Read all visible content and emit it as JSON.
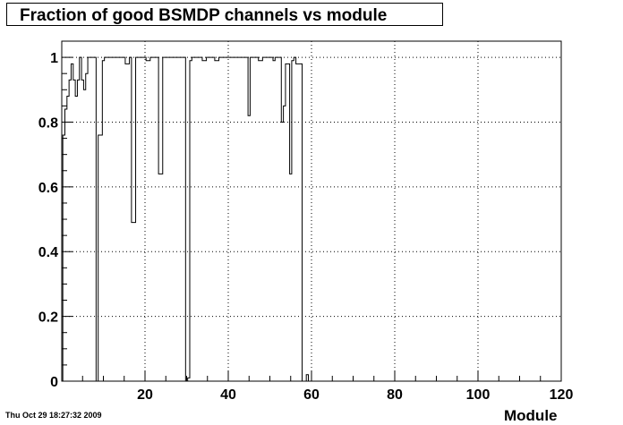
{
  "chart_data": {
    "type": "histogram-step",
    "title": "Fraction of good BSMDP channels vs module",
    "xlabel": "Module",
    "ylabel": "",
    "xlim": [
      0,
      120
    ],
    "ylim": [
      0,
      1.05
    ],
    "bin_width": 0.5,
    "x_ticks": [
      20,
      40,
      60,
      80,
      100,
      120
    ],
    "y_ticks": [
      0,
      0.2,
      0.4,
      0.6,
      0.8,
      1
    ],
    "y_tick_labels": [
      "0",
      "0.2",
      "0.4",
      "0.6",
      "0.8",
      "1"
    ],
    "x_tick_labels": [
      "20",
      "40",
      "60",
      "80",
      "100",
      "120"
    ],
    "grid": true,
    "points": [
      [
        0.5,
        0.76
      ],
      [
        1.0,
        0.84
      ],
      [
        1.5,
        0.88
      ],
      [
        2.0,
        0.93
      ],
      [
        2.5,
        0.98
      ],
      [
        3.0,
        0.93
      ],
      [
        3.5,
        0.88
      ],
      [
        4.0,
        0.93
      ],
      [
        4.5,
        1.0
      ],
      [
        5.0,
        0.93
      ],
      [
        5.5,
        0.9
      ],
      [
        6.0,
        0.95
      ],
      [
        6.5,
        1.0
      ],
      [
        7.0,
        1.0
      ],
      [
        7.5,
        1.0
      ],
      [
        8.0,
        1.0
      ],
      [
        8.5,
        0.0
      ],
      [
        9.0,
        0.76
      ],
      [
        9.5,
        0.76
      ],
      [
        10.0,
        0.99
      ],
      [
        10.5,
        1.0
      ],
      [
        11.0,
        1.0
      ],
      [
        11.5,
        1.0
      ],
      [
        12.0,
        1.0
      ],
      [
        12.5,
        1.0
      ],
      [
        13.0,
        1.0
      ],
      [
        13.5,
        1.0
      ],
      [
        14.0,
        1.0
      ],
      [
        14.5,
        1.0
      ],
      [
        15.0,
        1.0
      ],
      [
        15.5,
        0.98
      ],
      [
        16.0,
        0.98
      ],
      [
        16.5,
        1.0
      ],
      [
        17.0,
        0.49
      ],
      [
        17.5,
        0.49
      ],
      [
        18.0,
        1.0
      ],
      [
        18.5,
        1.0
      ],
      [
        19.0,
        1.0
      ],
      [
        19.5,
        1.0
      ],
      [
        20.0,
        1.0
      ],
      [
        20.5,
        0.99
      ],
      [
        21.0,
        0.99
      ],
      [
        21.5,
        1.0
      ],
      [
        22.0,
        1.0
      ],
      [
        22.5,
        1.0
      ],
      [
        23.0,
        1.0
      ],
      [
        23.5,
        0.64
      ],
      [
        24.0,
        0.64
      ],
      [
        24.5,
        1.0
      ],
      [
        25.0,
        1.0
      ],
      [
        25.5,
        1.0
      ],
      [
        26.0,
        1.0
      ],
      [
        26.5,
        1.0
      ],
      [
        27.0,
        1.0
      ],
      [
        27.5,
        1.0
      ],
      [
        28.0,
        1.0
      ],
      [
        28.5,
        1.0
      ],
      [
        29.0,
        1.0
      ],
      [
        29.5,
        1.0
      ],
      [
        30.0,
        0.0
      ],
      [
        30.5,
        0.01
      ],
      [
        31.0,
        0.99
      ],
      [
        31.5,
        1.0
      ],
      [
        32.0,
        1.0
      ],
      [
        32.5,
        1.0
      ],
      [
        33.0,
        1.0
      ],
      [
        33.5,
        1.0
      ],
      [
        34.0,
        0.99
      ],
      [
        34.5,
        0.99
      ],
      [
        35.0,
        1.0
      ],
      [
        35.5,
        1.0
      ],
      [
        36.0,
        1.0
      ],
      [
        36.5,
        1.0
      ],
      [
        37.0,
        0.99
      ],
      [
        37.5,
        0.99
      ],
      [
        38.0,
        1.0
      ],
      [
        38.5,
        1.0
      ],
      [
        39.0,
        1.0
      ],
      [
        39.5,
        1.0
      ],
      [
        40.0,
        1.0
      ],
      [
        40.5,
        1.0
      ],
      [
        41.0,
        1.0
      ],
      [
        41.5,
        1.0
      ],
      [
        42.0,
        1.0
      ],
      [
        42.5,
        1.0
      ],
      [
        43.0,
        1.0
      ],
      [
        43.5,
        1.0
      ],
      [
        44.0,
        1.0
      ],
      [
        44.5,
        1.0
      ],
      [
        45.0,
        0.82
      ],
      [
        45.5,
        1.0
      ],
      [
        46.0,
        1.0
      ],
      [
        46.5,
        1.0
      ],
      [
        47.0,
        1.0
      ],
      [
        47.5,
        0.99
      ],
      [
        48.0,
        0.99
      ],
      [
        48.5,
        1.0
      ],
      [
        49.0,
        1.0
      ],
      [
        49.5,
        1.0
      ],
      [
        50.0,
        1.0
      ],
      [
        50.5,
        1.0
      ],
      [
        51.0,
        0.99
      ],
      [
        51.5,
        1.0
      ],
      [
        52.0,
        1.0
      ],
      [
        52.5,
        1.0
      ],
      [
        53.0,
        0.8
      ],
      [
        53.5,
        0.85
      ],
      [
        54.0,
        0.98
      ],
      [
        54.5,
        0.98
      ],
      [
        55.0,
        0.64
      ],
      [
        55.5,
        0.99
      ],
      [
        56.0,
        1.0
      ],
      [
        56.5,
        0.98
      ],
      [
        57.0,
        0.98
      ],
      [
        57.5,
        0.98
      ],
      [
        58.0,
        0.0
      ],
      [
        58.5,
        0.0
      ],
      [
        59.0,
        0.02
      ],
      [
        59.5,
        0.0
      ]
    ]
  },
  "footer": {
    "timestamp": "Thu Oct 29 18:27:32 2009"
  }
}
